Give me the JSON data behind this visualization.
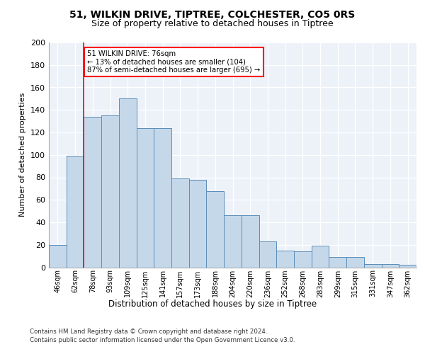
{
  "title1": "51, WILKIN DRIVE, TIPTREE, COLCHESTER, CO5 0RS",
  "title2": "Size of property relative to detached houses in Tiptree",
  "xlabel": "Distribution of detached houses by size in Tiptree",
  "ylabel": "Number of detached properties",
  "categories": [
    "46sqm",
    "62sqm",
    "78sqm",
    "93sqm",
    "109sqm",
    "125sqm",
    "141sqm",
    "157sqm",
    "173sqm",
    "188sqm",
    "204sqm",
    "220sqm",
    "236sqm",
    "252sqm",
    "268sqm",
    "283sqm",
    "299sqm",
    "315sqm",
    "331sqm",
    "347sqm",
    "362sqm"
  ],
  "bar_values": [
    20,
    99,
    134,
    135,
    150,
    124,
    124,
    79,
    78,
    68,
    46,
    46,
    23,
    15,
    14,
    19,
    9,
    9,
    3,
    3,
    2
  ],
  "bar_color": "#c5d8ea",
  "bar_edge_color": "#5b8db8",
  "vline_color": "red",
  "annotation_text": "51 WILKIN DRIVE: 76sqm\n← 13% of detached houses are smaller (104)\n87% of semi-detached houses are larger (695) →",
  "annotation_box_color": "white",
  "annotation_box_edge_color": "red",
  "ylim": [
    0,
    200
  ],
  "yticks": [
    0,
    20,
    40,
    60,
    80,
    100,
    120,
    140,
    160,
    180,
    200
  ],
  "footer1": "Contains HM Land Registry data © Crown copyright and database right 2024.",
  "footer2": "Contains public sector information licensed under the Open Government Licence v3.0.",
  "title1_fontsize": 10,
  "title2_fontsize": 9,
  "background_color": "#edf2f9"
}
